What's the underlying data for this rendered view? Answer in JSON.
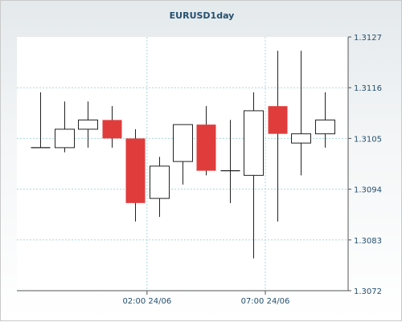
{
  "chart_data": {
    "type": "candlestick",
    "title": "EURUSD1day",
    "xlabel": "",
    "ylabel": "",
    "ylim": [
      1.3072,
      1.3127
    ],
    "y_ticks": [
      "1.3127",
      "1.3116",
      "1.3105",
      "1.3094",
      "1.3083",
      "1.3072"
    ],
    "x_tick_labels": [
      {
        "label": "02:00 24/06",
        "index": 4.5
      },
      {
        "label": "07:00 24/06",
        "index": 9.5
      }
    ],
    "grid": true,
    "colors": {
      "up_fill": "#ffffff",
      "down_fill": "#e03c3c",
      "wick": "#222222",
      "grid": "#a8d8dc",
      "text": "#24506e"
    },
    "candles": [
      {
        "open": 1.3103,
        "high": 1.3115,
        "low": 1.3103,
        "close": 1.3103
      },
      {
        "open": 1.3103,
        "high": 1.3113,
        "low": 1.3102,
        "close": 1.3107
      },
      {
        "open": 1.3107,
        "high": 1.3113,
        "low": 1.3103,
        "close": 1.3109
      },
      {
        "open": 1.3109,
        "high": 1.3112,
        "low": 1.3103,
        "close": 1.3105
      },
      {
        "open": 1.3105,
        "high": 1.3107,
        "low": 1.3087,
        "close": 1.3091
      },
      {
        "open": 1.3092,
        "high": 1.3101,
        "low": 1.3088,
        "close": 1.3099
      },
      {
        "open": 1.31,
        "high": 1.3108,
        "low": 1.3095,
        "close": 1.3108
      },
      {
        "open": 1.3108,
        "high": 1.3112,
        "low": 1.3097,
        "close": 1.3098
      },
      {
        "open": 1.3098,
        "high": 1.3109,
        "low": 1.3091,
        "close": 1.3098
      },
      {
        "open": 1.3097,
        "high": 1.3115,
        "low": 1.3079,
        "close": 1.3111
      },
      {
        "open": 1.3112,
        "high": 1.3124,
        "low": 1.3087,
        "close": 1.3106
      },
      {
        "open": 1.3104,
        "high": 1.3124,
        "low": 1.3097,
        "close": 1.3106
      },
      {
        "open": 1.3106,
        "high": 1.3115,
        "low": 1.3103,
        "close": 1.3109
      }
    ]
  }
}
